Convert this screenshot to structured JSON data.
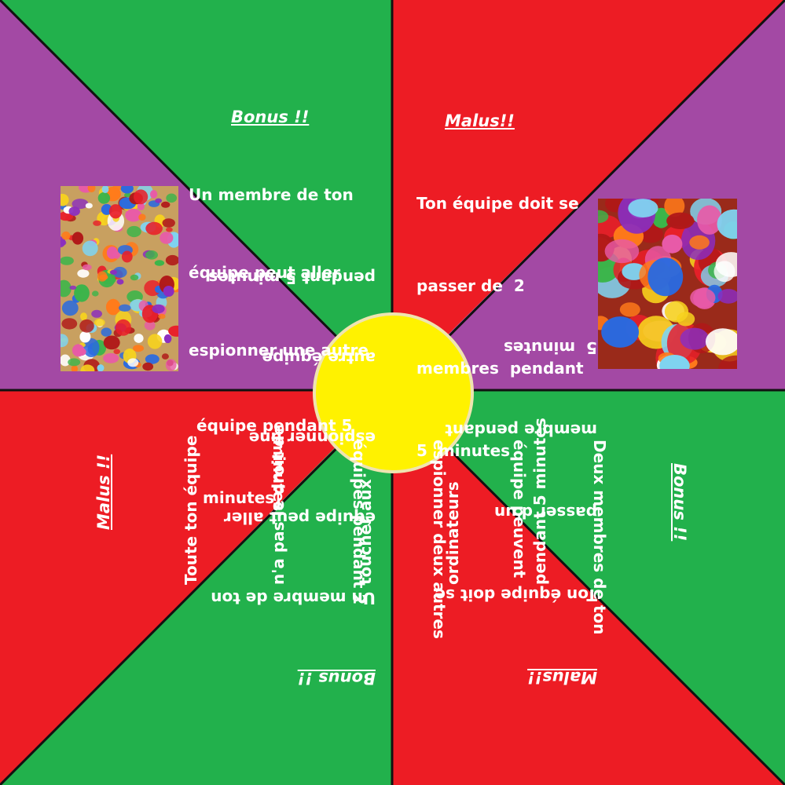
{
  "colors": {
    "green": "#22b14c",
    "red": "#ed1c24",
    "purple": "#a349a4",
    "yellow": "#fff200",
    "hub_border": "#efe4b0",
    "line": "#111111",
    "text": "#ffffff"
  },
  "panels": {
    "top_left": {
      "heading": "Bonus !!",
      "lines": [
        "Un membre de ton",
        "équipe peut aller",
        "espionner une autre",
        "équipe pendant 5",
        "minutes"
      ]
    },
    "top_right": {
      "heading": "Malus!!",
      "lines": [
        "Ton équipe doit se",
        "passer de  2",
        "membres  pendant",
        "5  minutes"
      ]
    },
    "right": {
      "heading": "Bonus !!",
      "lines": [
        "Deux membres de ton",
        "équipe peuvent",
        "espionner deux autres",
        "équipes pendant 2",
        "minutes"
      ]
    },
    "bottom_right": {
      "heading": "Malus!!",
      "lines": [
        "Ton équipe doit se",
        "passer d'un",
        "membre pendant",
        "5  minutes"
      ]
    },
    "bottom_left": {
      "heading": "Bonus !!",
      "lines": [
        "Un membre de ton",
        "équipe peut aller",
        "espionner une",
        "autre équipe",
        "pendant 5 minutes"
      ]
    },
    "left": {
      "heading": "Malus !!",
      "lines": [
        "Toute ton équipe",
        "n'a pas le droit de",
        "toucher aux",
        "ordinateurs",
        "pendant 5 minutes"
      ]
    }
  },
  "images": {
    "left": "candy-photo",
    "right": "candy-photo"
  }
}
